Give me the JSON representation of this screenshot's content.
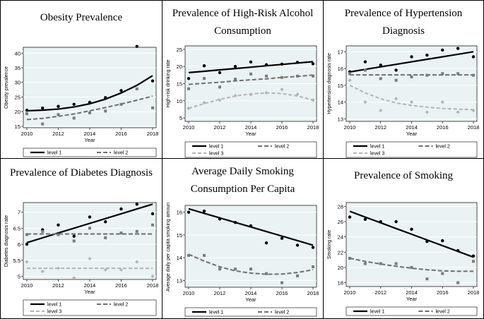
{
  "chart_data": [
    {
      "type": "scatter",
      "title": "Obesity Prevalence",
      "xlabel": "Year",
      "ylabel": "Obesity prevalence",
      "x": [
        2010,
        2011,
        2012,
        2013,
        2014,
        2015,
        2016,
        2017,
        2018
      ],
      "xticks": [
        2010,
        2012,
        2014,
        2016,
        2018
      ],
      "yticks": [
        15,
        20,
        25,
        30,
        35,
        40
      ],
      "ylim": [
        14.5,
        42
      ],
      "series": [
        {
          "name": "level 1",
          "points": [
            20.5,
            21.2,
            21.8,
            22.5,
            23.2,
            24.8,
            27.2,
            42.3,
            30.5
          ],
          "fit": [
            20.3,
            20.5,
            20.9,
            21.6,
            22.7,
            24.3,
            26.4,
            29.0,
            32.3
          ]
        },
        {
          "name": "level 2",
          "points": [
            19.3,
            15.8,
            19.0,
            17.8,
            19.6,
            20.2,
            22.5,
            27.8,
            21.3
          ],
          "fit": [
            17.3,
            17.7,
            18.4,
            19.2,
            20.3,
            21.4,
            22.6,
            23.9,
            25.3
          ]
        }
      ],
      "legend": [
        "level 1",
        "level 2"
      ]
    },
    {
      "type": "scatter",
      "title": "Prevalence of High-Risk Alcohol Consumption",
      "xlabel": "Year",
      "ylabel": "High-risk drinking rate",
      "x": [
        2010,
        2011,
        2012,
        2013,
        2014,
        2015,
        2016,
        2017,
        2018
      ],
      "xticks": [
        2010,
        2012,
        2014,
        2016,
        2018
      ],
      "yticks": [
        5,
        10,
        15,
        20,
        25
      ],
      "ylim": [
        4,
        26
      ],
      "series": [
        {
          "name": "level 1",
          "points": [
            16.5,
            20.2,
            18.2,
            20.0,
            21.3,
            20.5,
            20.7,
            21.2,
            20.8
          ],
          "fit": [
            18.2,
            18.6,
            19.0,
            19.4,
            19.8,
            20.2,
            20.6,
            21.0,
            21.4
          ]
        },
        {
          "name": "level 2",
          "points": [
            13.5,
            16.5,
            14.0,
            16.3,
            17.8,
            17.2,
            16.8,
            17.2,
            17.2
          ],
          "fit": [
            14.8,
            15.1,
            15.4,
            15.8,
            16.1,
            16.4,
            16.8,
            17.1,
            17.5
          ]
        },
        {
          "name": "level 3",
          "points": [
            7.8,
            9.5,
            10.2,
            11.5,
            11.8,
            12.3,
            13.3,
            11.9,
            10.2
          ],
          "fit": [
            7.8,
            9.2,
            10.4,
            11.4,
            12.0,
            12.3,
            12.1,
            11.4,
            10.2
          ]
        }
      ],
      "legend": [
        "level 1",
        "level 2",
        "level 3"
      ]
    },
    {
      "type": "scatter",
      "title": "Prevalence of Hypertension Diagnosis",
      "xlabel": "Year",
      "ylabel": "Hypertension diagnosis rate",
      "x": [
        2010,
        2011,
        2012,
        2013,
        2014,
        2015,
        2016,
        2017,
        2018
      ],
      "xticks": [
        2010,
        2012,
        2014,
        2016,
        2018
      ],
      "yticks": [
        13,
        14,
        15,
        16,
        17
      ],
      "ylim": [
        12.85,
        17.35
      ],
      "series": [
        {
          "name": "level 1",
          "points": [
            15.8,
            16.4,
            16.2,
            15.9,
            16.7,
            16.8,
            17.1,
            17.2,
            16.7
          ],
          "fit": [
            15.8,
            15.95,
            16.1,
            16.25,
            16.4,
            16.55,
            16.7,
            16.85,
            17.0
          ]
        },
        {
          "name": "level 2",
          "points": [
            15.7,
            15.9,
            15.4,
            15.3,
            15.5,
            15.6,
            15.7,
            15.7,
            15.6
          ],
          "fit": [
            15.62,
            15.62,
            15.62,
            15.62,
            15.62,
            15.62,
            15.62,
            15.62,
            15.62
          ]
        },
        {
          "name": "level 3",
          "points": [
            15.3,
            14.0,
            13.5,
            14.2,
            14.0,
            13.4,
            14.0,
            13.4,
            13.5
          ],
          "fit": [
            15.0,
            14.55,
            14.2,
            13.95,
            13.8,
            13.7,
            13.62,
            13.58,
            13.55
          ]
        }
      ],
      "legend": [
        "level 1",
        "level 2",
        "level 3"
      ]
    },
    {
      "type": "scatter",
      "title": "Prevalence of Diabetes Diagnosis",
      "xlabel": "Year",
      "ylabel": "Diabetes diagnosis rate",
      "x": [
        2010,
        2011,
        2012,
        2013,
        2014,
        2015,
        2016,
        2017,
        2018
      ],
      "xticks": [
        2010,
        2012,
        2014,
        2016,
        2018
      ],
      "yticks": [
        5,
        5.5,
        6,
        6.5,
        7
      ],
      "ylim": [
        4.9,
        7.3
      ],
      "series": [
        {
          "name": "level 1",
          "points": [
            6.0,
            6.45,
            6.6,
            6.25,
            6.85,
            6.7,
            7.1,
            7.25,
            6.95
          ],
          "fit": [
            6.05,
            6.2,
            6.35,
            6.5,
            6.65,
            6.8,
            6.95,
            7.1,
            7.25
          ]
        },
        {
          "name": "level 2",
          "points": [
            6.3,
            6.4,
            6.3,
            6.1,
            6.5,
            6.2,
            6.35,
            6.4,
            6.6
          ],
          "fit": [
            6.32,
            6.32,
            6.32,
            6.32,
            6.32,
            6.32,
            6.32,
            6.32,
            6.32
          ]
        },
        {
          "name": "level 3",
          "points": [
            5.45,
            5.15,
            5.25,
            4.95,
            5.55,
            5.2,
            5.2,
            5.45,
            5.0
          ],
          "fit": [
            5.25,
            5.25,
            5.25,
            5.25,
            5.25,
            5.25,
            5.25,
            5.25,
            5.25
          ]
        }
      ],
      "legend": [
        "level 1",
        "level 2",
        "level 3"
      ]
    },
    {
      "type": "scatter",
      "title": "Average Daily Smoking Consumption Per Capita",
      "xlabel": "Year",
      "ylabel": "Average daily per capita smoking amount",
      "x": [
        2010,
        2011,
        2012,
        2013,
        2014,
        2015,
        2016,
        2017,
        2018
      ],
      "xticks": [
        2010,
        2012,
        2014,
        2016,
        2018
      ],
      "yticks": [
        13,
        14,
        15,
        16
      ],
      "ylim": [
        12.7,
        16.3
      ],
      "series": [
        {
          "name": "level 1",
          "points": [
            16.0,
            16.05,
            15.7,
            15.55,
            15.4,
            14.65,
            14.85,
            14.55,
            14.45
          ],
          "fit": [
            16.15,
            15.95,
            15.75,
            15.55,
            15.35,
            15.15,
            14.95,
            14.75,
            14.55
          ]
        },
        {
          "name": "level 2",
          "points": [
            14.1,
            14.1,
            13.5,
            13.5,
            13.5,
            13.3,
            12.9,
            13.2,
            13.6
          ],
          "fit": [
            14.15,
            13.85,
            13.6,
            13.42,
            13.32,
            13.27,
            13.28,
            13.35,
            13.47
          ]
        }
      ],
      "legend": [
        "level 1",
        "level 2"
      ]
    },
    {
      "type": "scatter",
      "title": "Prevalence of Smoking",
      "xlabel": "Year",
      "ylabel": "Smoking rate",
      "x": [
        2010,
        2011,
        2012,
        2013,
        2014,
        2015,
        2016,
        2017,
        2018
      ],
      "xticks": [
        2010,
        2012,
        2014,
        2016,
        2018
      ],
      "yticks": [
        18,
        20,
        22,
        24,
        26,
        28
      ],
      "ylim": [
        17.5,
        28.5
      ],
      "series": [
        {
          "name": "level 1",
          "points": [
            26.6,
            26.3,
            26.0,
            26.0,
            25.0,
            23.4,
            23.5,
            22.2,
            21.5
          ],
          "fit": [
            27.35,
            26.6,
            25.85,
            25.1,
            24.35,
            23.6,
            22.85,
            22.1,
            21.35
          ]
        },
        {
          "name": "level 2",
          "points": [
            21.2,
            20.5,
            20.5,
            20.5,
            20.0,
            18.5,
            19.2,
            18.0,
            20.8
          ],
          "fit": [
            21.2,
            20.8,
            20.45,
            20.15,
            19.9,
            19.7,
            19.55,
            19.5,
            19.5
          ]
        }
      ],
      "legend": [
        "level 1",
        "level 2"
      ]
    }
  ]
}
